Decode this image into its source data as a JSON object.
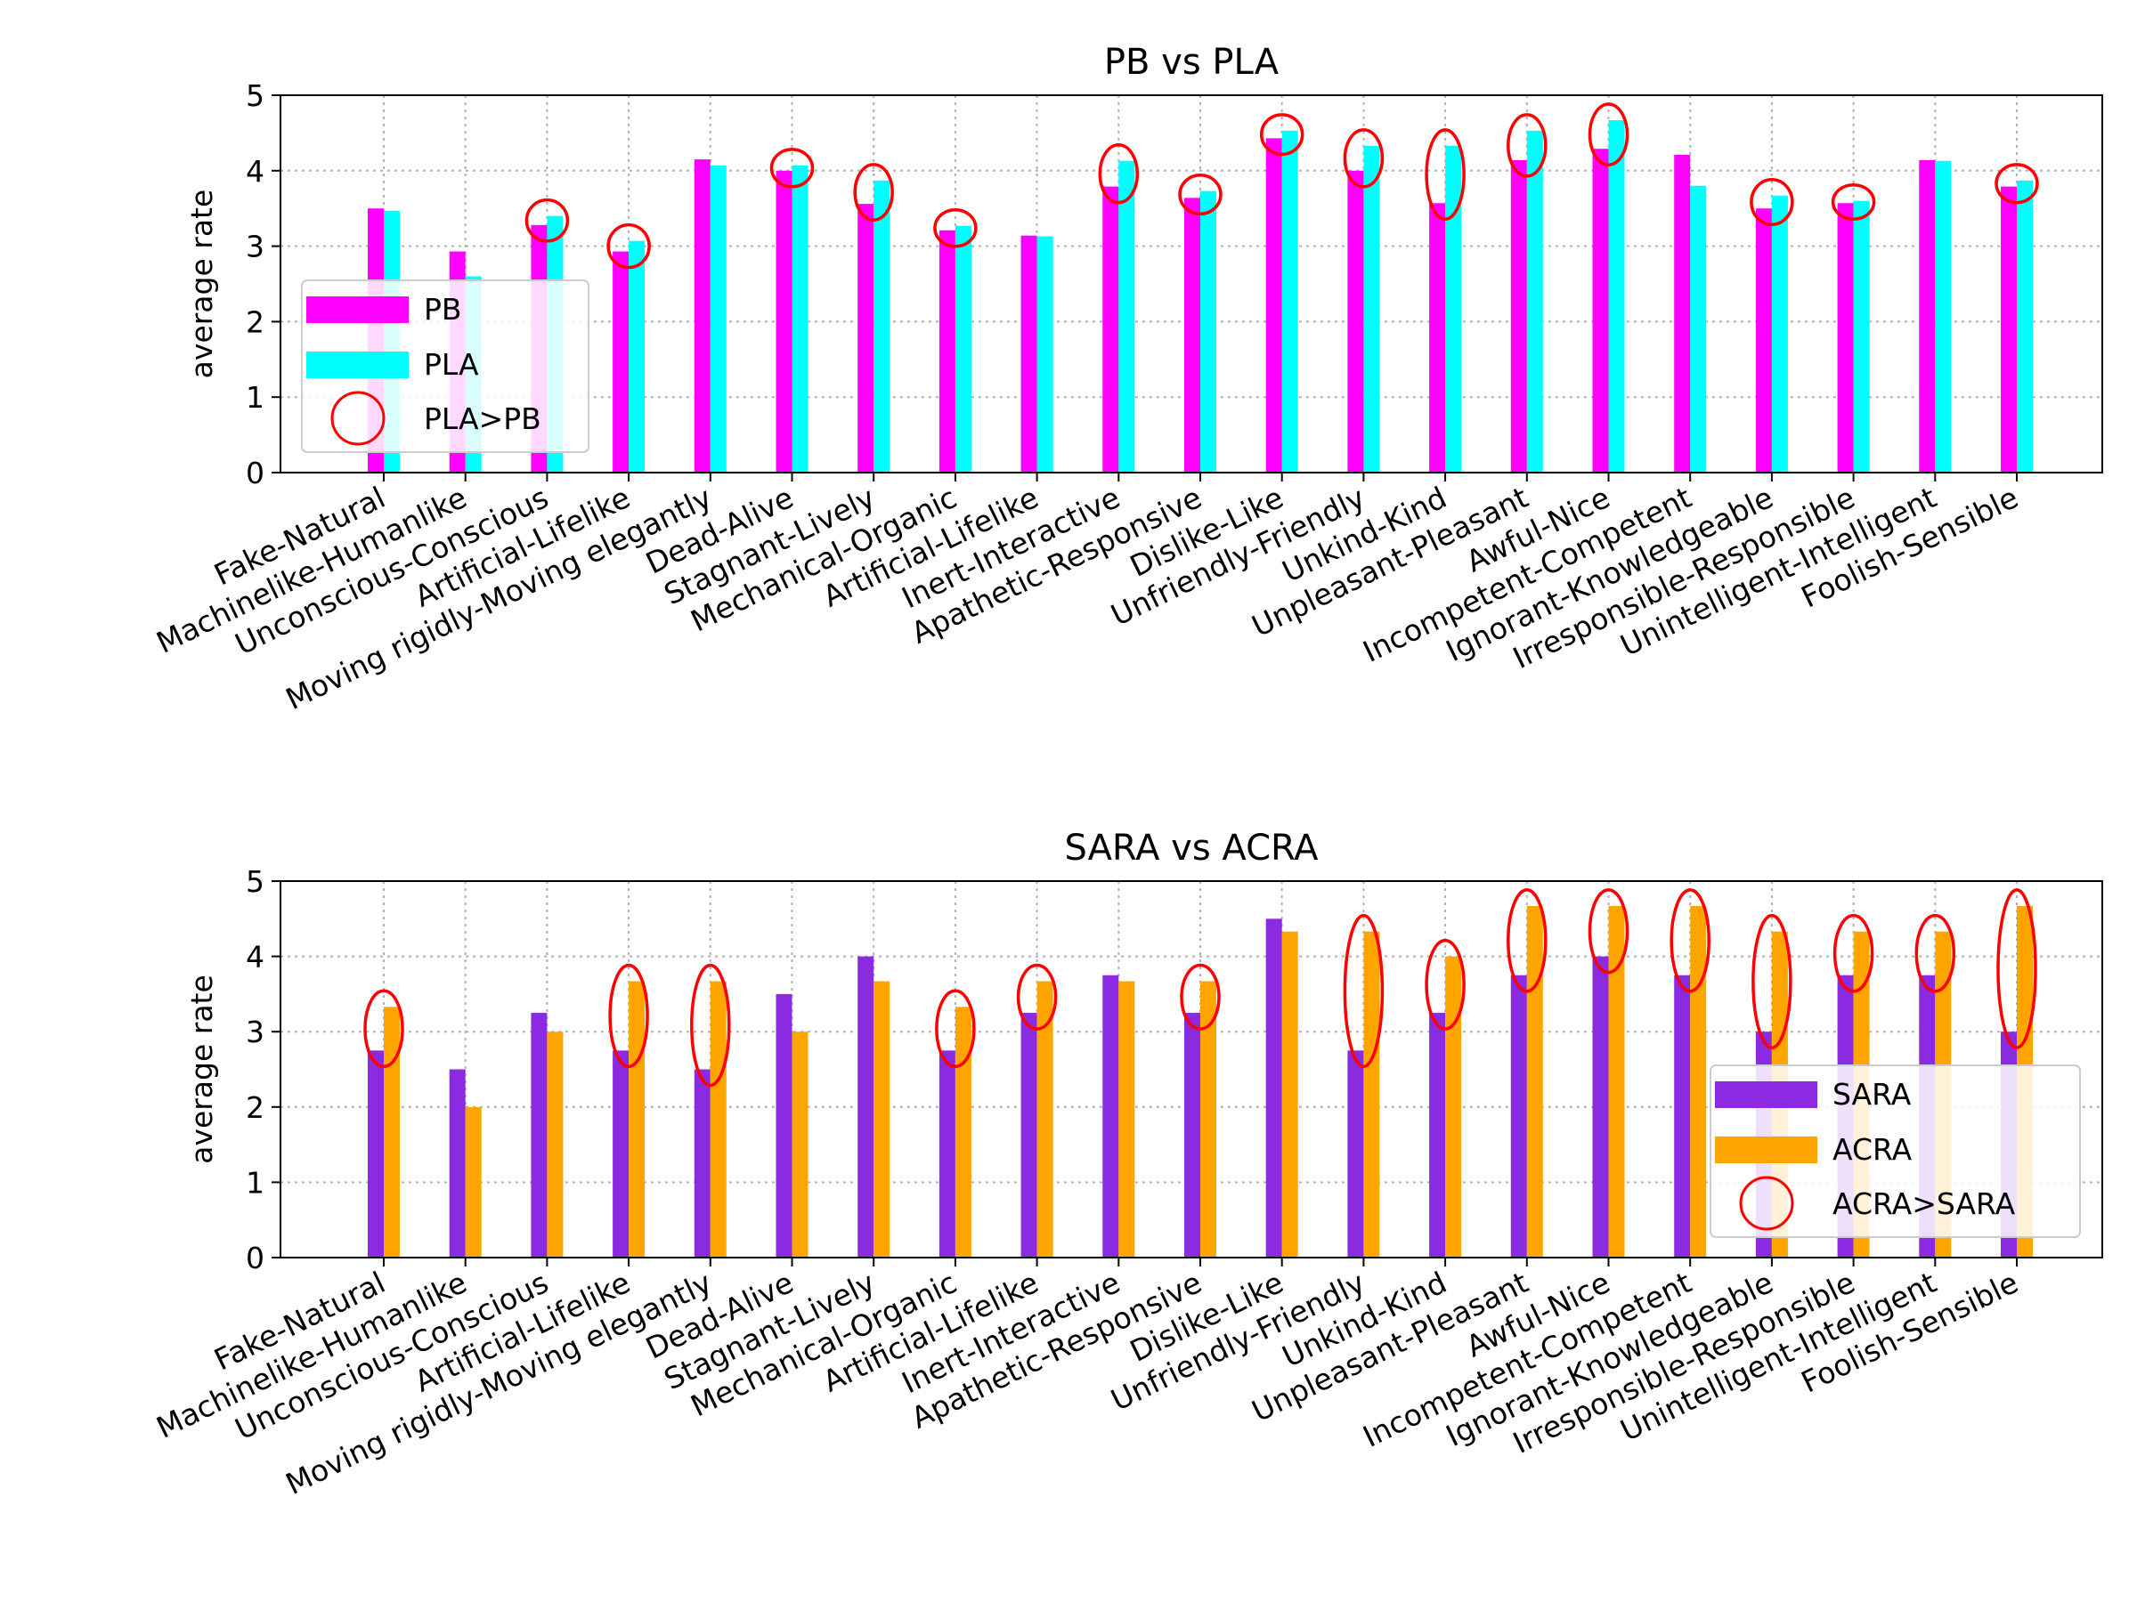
{
  "chart_data": [
    {
      "type": "bar",
      "title": "PB vs PLA",
      "xlabel": "",
      "ylabel": "average rate",
      "ylim": [
        0,
        5
      ],
      "yticks": [
        0,
        1,
        2,
        3,
        4,
        5
      ],
      "grid": true,
      "legend_position": "left",
      "categories": [
        "Fake-Natural",
        "Machinelike-Humanlike",
        "Unconscious-Conscious",
        "Artificial-Lifelike",
        "Moving rigidly-Moving elegantly",
        "Dead-Alive",
        "Stagnant-Lively",
        "Mechanical-Organic",
        "Artificial-Lifelike",
        "Inert-Interactive",
        "Apathetic-Responsive",
        "Dislike-Like",
        "Unfriendly-Friendly",
        "Unkind-Kind",
        "Unpleasant-Pleasant",
        "Awful-Nice",
        "Incompetent-Competent",
        "Ignorant-Knowledgeable",
        "Irresponsible-Responsible",
        "Unintelligent-Intelligent",
        "Foolish-Sensible"
      ],
      "series": [
        {
          "name": "PB",
          "color": "#ff00ff",
          "values": [
            3.5,
            2.93,
            3.28,
            2.93,
            4.15,
            4.0,
            3.56,
            3.21,
            3.14,
            3.79,
            3.64,
            4.43,
            4.0,
            3.57,
            4.14,
            4.29,
            4.21,
            3.5,
            3.57,
            4.14,
            3.79
          ]
        },
        {
          "name": "PLA",
          "color": "#00ffff",
          "values": [
            3.47,
            2.6,
            3.4,
            3.07,
            4.07,
            4.07,
            3.87,
            3.27,
            3.13,
            4.13,
            3.73,
            4.53,
            4.33,
            4.33,
            4.53,
            4.67,
            3.8,
            3.67,
            3.6,
            4.13,
            3.87
          ]
        }
      ],
      "highlight": {
        "label": "PLA>PB",
        "color": "#ff0000",
        "indices": [
          2,
          3,
          5,
          6,
          7,
          9,
          10,
          11,
          12,
          13,
          14,
          15,
          17,
          18,
          20
        ]
      }
    },
    {
      "type": "bar",
      "title": "SARA vs ACRA",
      "xlabel": "",
      "ylabel": "average rate",
      "ylim": [
        0,
        5
      ],
      "yticks": [
        0,
        1,
        2,
        3,
        4,
        5
      ],
      "grid": true,
      "legend_position": "lower right",
      "categories": [
        "Fake-Natural",
        "Machinelike-Humanlike",
        "Unconscious-Conscious",
        "Artificial-Lifelike",
        "Moving rigidly-Moving elegantly",
        "Dead-Alive",
        "Stagnant-Lively",
        "Mechanical-Organic",
        "Artificial-Lifelike",
        "Inert-Interactive",
        "Apathetic-Responsive",
        "Dislike-Like",
        "Unfriendly-Friendly",
        "Unkind-Kind",
        "Unpleasant-Pleasant",
        "Awful-Nice",
        "Incompetent-Competent",
        "Ignorant-Knowledgeable",
        "Irresponsible-Responsible",
        "Unintelligent-Intelligent",
        "Foolish-Sensible"
      ],
      "series": [
        {
          "name": "SARA",
          "color": "#8a2be2",
          "values": [
            2.75,
            2.5,
            3.25,
            2.75,
            2.5,
            3.5,
            4.0,
            2.75,
            3.25,
            3.75,
            3.25,
            4.5,
            2.75,
            3.25,
            3.75,
            4.0,
            3.75,
            3.0,
            3.75,
            3.75,
            3.0
          ]
        },
        {
          "name": "ACRA",
          "color": "#ffa500",
          "values": [
            3.33,
            2.0,
            3.0,
            3.67,
            3.67,
            3.0,
            3.67,
            3.33,
            3.67,
            3.67,
            3.67,
            4.33,
            4.33,
            4.0,
            4.67,
            4.67,
            4.67,
            4.33,
            4.33,
            4.33,
            4.67
          ]
        }
      ],
      "highlight": {
        "label": "ACRA>SARA",
        "color": "#ff0000",
        "indices": [
          0,
          3,
          4,
          7,
          8,
          10,
          12,
          13,
          14,
          15,
          16,
          17,
          18,
          19,
          20
        ]
      }
    }
  ]
}
